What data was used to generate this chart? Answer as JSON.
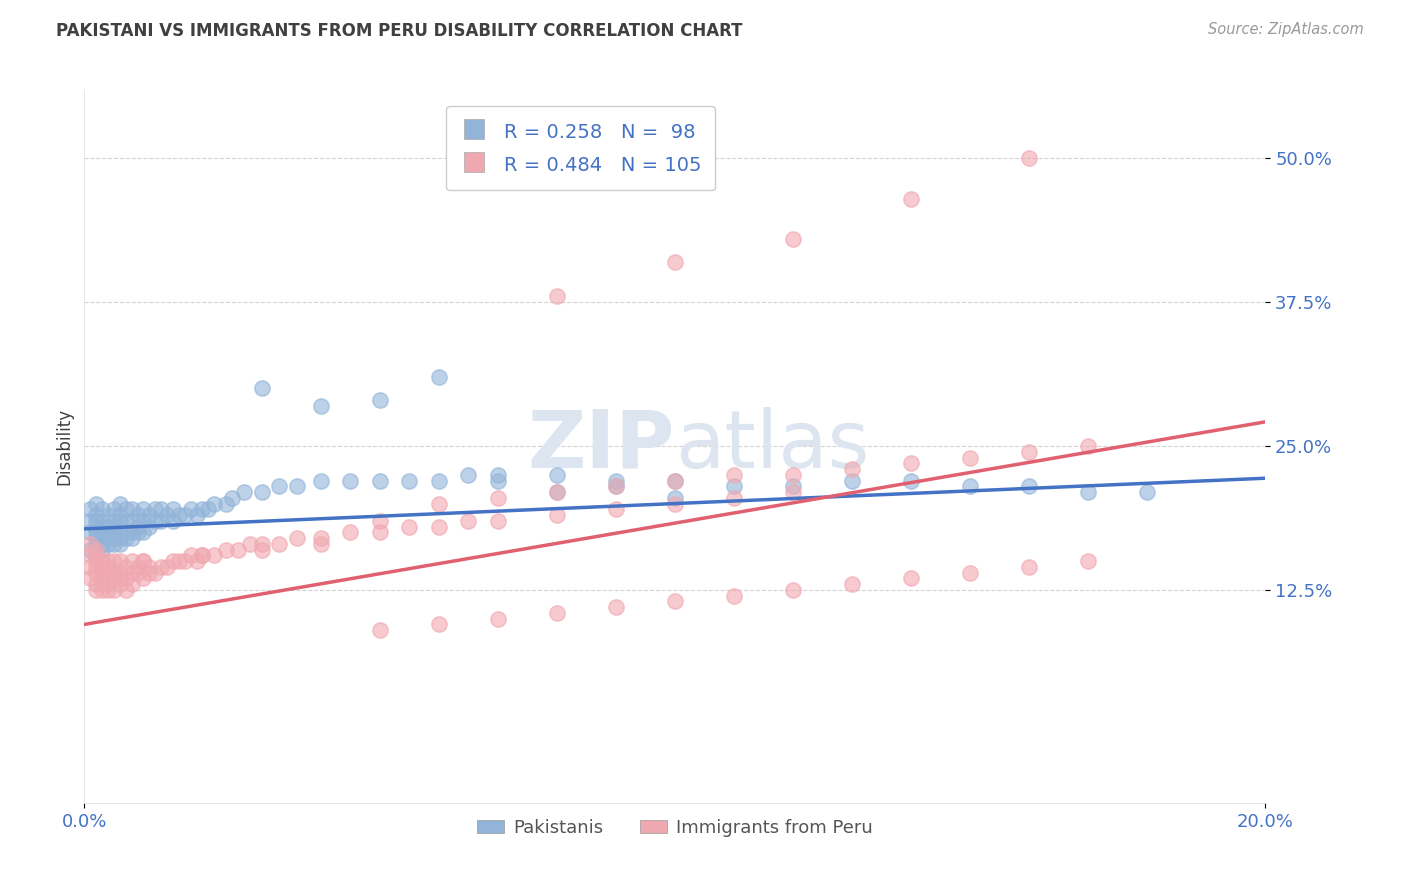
{
  "title": "PAKISTANI VS IMMIGRANTS FROM PERU DISABILITY CORRELATION CHART",
  "source": "Source: ZipAtlas.com",
  "ylabel": "Disability",
  "x_min": 0.0,
  "x_max": 0.2,
  "y_min": -0.06,
  "y_max": 0.56,
  "y_ticks": [
    0.125,
    0.25,
    0.375,
    0.5
  ],
  "y_tick_labels": [
    "12.5%",
    "25.0%",
    "37.5%",
    "50.0%"
  ],
  "x_ticks": [
    0.0,
    0.2
  ],
  "x_tick_labels": [
    "0.0%",
    "20.0%"
  ],
  "blue_R": 0.258,
  "blue_N": 98,
  "pink_R": 0.484,
  "pink_N": 105,
  "blue_color": "#92b4d9",
  "pink_color": "#f0a8b0",
  "blue_line_color": "#4472c4",
  "pink_line_color": "#e06070",
  "blue_label": "Pakistanis",
  "pink_label": "Immigrants from Peru",
  "legend_R_color": "#4472c4",
  "background_color": "#ffffff",
  "grid_color": "#c8c8c8",
  "title_color": "#404040",
  "axis_label_color": "#404040",
  "tick_color": "#4472c4",
  "watermark_color": "#dce5f0",
  "blue_intercept": 0.178,
  "blue_slope": 0.22,
  "pink_intercept": 0.095,
  "pink_slope": 0.88,
  "blue_scatter_x": [
    0.001,
    0.001,
    0.001,
    0.001,
    0.002,
    0.002,
    0.002,
    0.002,
    0.002,
    0.002,
    0.002,
    0.002,
    0.003,
    0.003,
    0.003,
    0.003,
    0.003,
    0.003,
    0.003,
    0.004,
    0.004,
    0.004,
    0.004,
    0.004,
    0.005,
    0.005,
    0.005,
    0.005,
    0.005,
    0.005,
    0.006,
    0.006,
    0.006,
    0.006,
    0.006,
    0.006,
    0.007,
    0.007,
    0.007,
    0.007,
    0.008,
    0.008,
    0.008,
    0.008,
    0.009,
    0.009,
    0.009,
    0.01,
    0.01,
    0.01,
    0.011,
    0.011,
    0.012,
    0.012,
    0.013,
    0.013,
    0.014,
    0.015,
    0.015,
    0.016,
    0.017,
    0.018,
    0.019,
    0.02,
    0.021,
    0.022,
    0.024,
    0.025,
    0.027,
    0.03,
    0.033,
    0.036,
    0.04,
    0.045,
    0.05,
    0.055,
    0.06,
    0.065,
    0.07,
    0.08,
    0.09,
    0.1,
    0.11,
    0.12,
    0.13,
    0.14,
    0.15,
    0.16,
    0.17,
    0.18,
    0.05,
    0.04,
    0.06,
    0.03,
    0.07,
    0.08,
    0.09,
    0.1
  ],
  "blue_scatter_y": [
    0.175,
    0.185,
    0.16,
    0.195,
    0.17,
    0.165,
    0.18,
    0.19,
    0.155,
    0.2,
    0.175,
    0.185,
    0.165,
    0.175,
    0.16,
    0.185,
    0.195,
    0.17,
    0.18,
    0.17,
    0.18,
    0.165,
    0.19,
    0.175,
    0.17,
    0.185,
    0.175,
    0.195,
    0.165,
    0.18,
    0.175,
    0.19,
    0.17,
    0.185,
    0.165,
    0.2,
    0.175,
    0.185,
    0.17,
    0.195,
    0.175,
    0.185,
    0.17,
    0.195,
    0.18,
    0.175,
    0.19,
    0.185,
    0.175,
    0.195,
    0.18,
    0.19,
    0.185,
    0.195,
    0.185,
    0.195,
    0.19,
    0.185,
    0.195,
    0.19,
    0.19,
    0.195,
    0.19,
    0.195,
    0.195,
    0.2,
    0.2,
    0.205,
    0.21,
    0.21,
    0.215,
    0.215,
    0.22,
    0.22,
    0.22,
    0.22,
    0.22,
    0.225,
    0.225,
    0.225,
    0.22,
    0.22,
    0.215,
    0.215,
    0.22,
    0.22,
    0.215,
    0.215,
    0.21,
    0.21,
    0.29,
    0.285,
    0.31,
    0.3,
    0.22,
    0.21,
    0.215,
    0.205
  ],
  "pink_scatter_x": [
    0.001,
    0.001,
    0.001,
    0.001,
    0.002,
    0.002,
    0.002,
    0.002,
    0.002,
    0.002,
    0.002,
    0.003,
    0.003,
    0.003,
    0.003,
    0.003,
    0.003,
    0.004,
    0.004,
    0.004,
    0.004,
    0.004,
    0.005,
    0.005,
    0.005,
    0.005,
    0.006,
    0.006,
    0.006,
    0.006,
    0.007,
    0.007,
    0.007,
    0.008,
    0.008,
    0.008,
    0.009,
    0.009,
    0.01,
    0.01,
    0.011,
    0.011,
    0.012,
    0.013,
    0.014,
    0.015,
    0.016,
    0.017,
    0.018,
    0.019,
    0.02,
    0.022,
    0.024,
    0.026,
    0.028,
    0.03,
    0.033,
    0.036,
    0.04,
    0.045,
    0.05,
    0.055,
    0.06,
    0.065,
    0.07,
    0.08,
    0.09,
    0.1,
    0.11,
    0.12,
    0.05,
    0.06,
    0.07,
    0.08,
    0.09,
    0.1,
    0.11,
    0.12,
    0.13,
    0.14,
    0.15,
    0.16,
    0.17,
    0.04,
    0.03,
    0.02,
    0.01,
    0.05,
    0.06,
    0.07,
    0.08,
    0.09,
    0.1,
    0.11,
    0.12,
    0.13,
    0.14,
    0.15,
    0.16,
    0.17,
    0.12,
    0.14,
    0.16,
    0.08,
    0.1
  ],
  "pink_scatter_y": [
    0.145,
    0.155,
    0.135,
    0.165,
    0.14,
    0.15,
    0.13,
    0.16,
    0.125,
    0.145,
    0.155,
    0.14,
    0.13,
    0.15,
    0.125,
    0.145,
    0.135,
    0.14,
    0.125,
    0.15,
    0.13,
    0.145,
    0.135,
    0.15,
    0.125,
    0.14,
    0.14,
    0.13,
    0.15,
    0.135,
    0.135,
    0.145,
    0.125,
    0.14,
    0.13,
    0.15,
    0.14,
    0.145,
    0.135,
    0.15,
    0.14,
    0.145,
    0.14,
    0.145,
    0.145,
    0.15,
    0.15,
    0.15,
    0.155,
    0.15,
    0.155,
    0.155,
    0.16,
    0.16,
    0.165,
    0.165,
    0.165,
    0.17,
    0.17,
    0.175,
    0.175,
    0.18,
    0.18,
    0.185,
    0.185,
    0.19,
    0.195,
    0.2,
    0.205,
    0.21,
    0.185,
    0.2,
    0.205,
    0.21,
    0.215,
    0.22,
    0.225,
    0.225,
    0.23,
    0.235,
    0.24,
    0.245,
    0.25,
    0.165,
    0.16,
    0.155,
    0.15,
    0.09,
    0.095,
    0.1,
    0.105,
    0.11,
    0.115,
    0.12,
    0.125,
    0.13,
    0.135,
    0.14,
    0.145,
    0.15,
    0.43,
    0.465,
    0.5,
    0.38,
    0.41
  ]
}
